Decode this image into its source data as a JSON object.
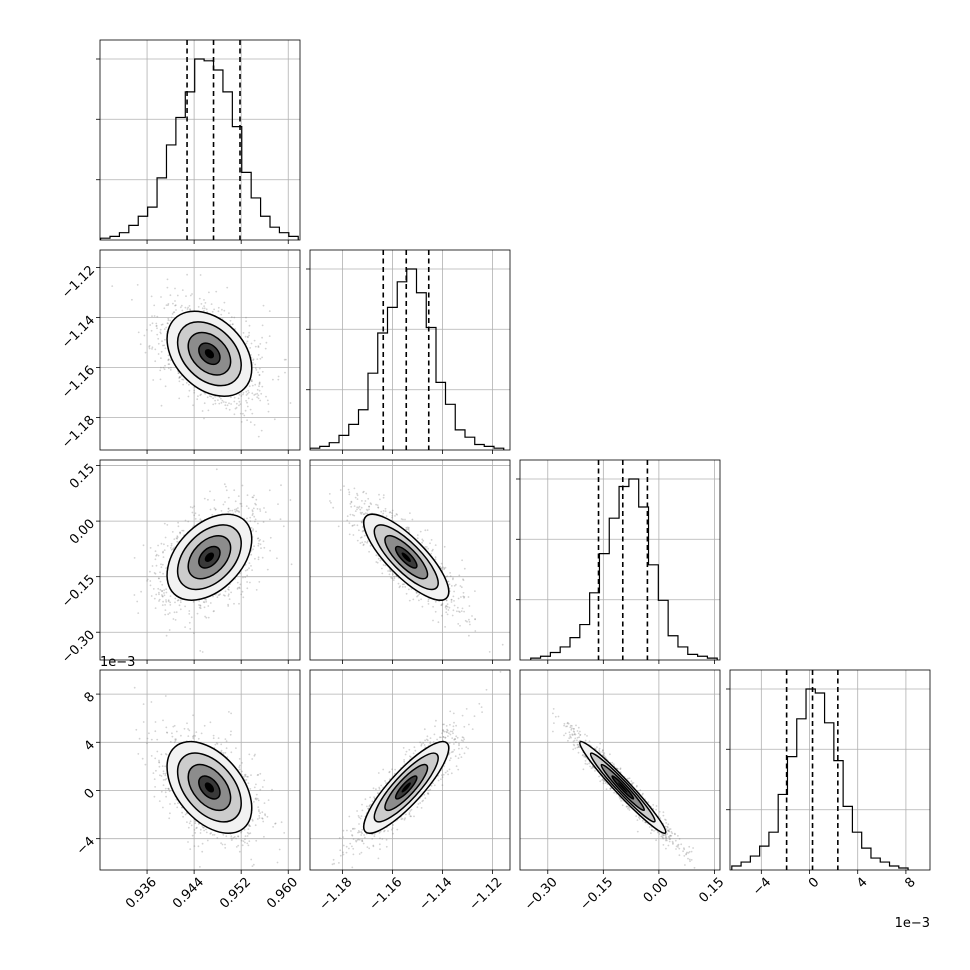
{
  "chart_data": {
    "type": "corner",
    "parameters": [
      {
        "range": [
          0.928,
          0.962
        ],
        "ticks": [
          0.936,
          0.944,
          0.952,
          0.96
        ],
        "tick_labels": [
          "0.936",
          "0.944",
          "0.952",
          "0.960"
        ],
        "offset_label": "",
        "mean": 0.9466,
        "sd": 0.0036,
        "quantiles": [
          0.9428,
          0.9473,
          0.9518
        ],
        "hist_edges": [
          0.9281,
          0.9297,
          0.9313,
          0.9329,
          0.9345,
          0.9361,
          0.9377,
          0.9393,
          0.9409,
          0.9425,
          0.9441,
          0.9457,
          0.9473,
          0.9489,
          0.9505,
          0.9521,
          0.9537,
          0.9553,
          0.9569,
          0.9585,
          0.9601,
          0.9617
        ],
        "hist_counts": [
          0.01,
          0.02,
          0.04,
          0.08,
          0.13,
          0.18,
          0.34,
          0.52,
          0.67,
          0.81,
          0.99,
          0.98,
          0.93,
          0.81,
          0.62,
          0.37,
          0.23,
          0.13,
          0.07,
          0.04,
          0.02
        ]
      },
      {
        "range": [
          -1.193,
          -1.113
        ],
        "ticks": [
          -1.18,
          -1.16,
          -1.14,
          -1.12
        ],
        "tick_labels": [
          "−1.18",
          "−1.16",
          "−1.14",
          "−1.12"
        ],
        "offset_label": "",
        "mean": -1.1545,
        "sd": 0.0085,
        "quantiles": [
          -1.1637,
          -1.1545,
          -1.1455
        ],
        "hist_edges": [
          -1.193,
          -1.1891,
          -1.1853,
          -1.1814,
          -1.1775,
          -1.1736,
          -1.1698,
          -1.1659,
          -1.162,
          -1.1581,
          -1.1543,
          -1.1504,
          -1.1465,
          -1.1426,
          -1.1388,
          -1.1349,
          -1.131,
          -1.1271,
          -1.1233,
          -1.1194,
          -1.1155
        ],
        "hist_counts": [
          0.01,
          0.02,
          0.04,
          0.08,
          0.14,
          0.22,
          0.42,
          0.64,
          0.78,
          0.92,
          0.99,
          0.86,
          0.67,
          0.37,
          0.25,
          0.11,
          0.07,
          0.03,
          0.02,
          0.01
        ]
      },
      {
        "range": [
          -0.375,
          0.165
        ],
        "ticks": [
          -0.3,
          -0.15,
          0.0,
          0.15
        ],
        "tick_labels": [
          "−0.30",
          "−0.15",
          "0.00",
          "0.15"
        ],
        "offset_label": "",
        "mean": -0.0975,
        "sd": 0.058,
        "quantiles": [
          -0.163,
          -0.0975,
          -0.031
        ],
        "hist_edges": [
          -0.346,
          -0.3195,
          -0.293,
          -0.2665,
          -0.24,
          -0.2135,
          -0.187,
          -0.1605,
          -0.134,
          -0.1075,
          -0.081,
          -0.0545,
          -0.028,
          -0.0015,
          0.025,
          0.0515,
          0.078,
          0.1045,
          0.131,
          0.1575
        ],
        "hist_counts": [
          0.01,
          0.02,
          0.04,
          0.07,
          0.12,
          0.19,
          0.36,
          0.57,
          0.76,
          0.93,
          0.97,
          0.82,
          0.51,
          0.32,
          0.13,
          0.07,
          0.03,
          0.02,
          0.01
        ]
      },
      {
        "range": [
          -6.6,
          10.0
        ],
        "ticks": [
          -4,
          0,
          4,
          8
        ],
        "tick_labels": [
          "−4",
          "0",
          "4",
          "8"
        ],
        "offset_label": "1e−3",
        "mean": 0.25,
        "sd": 1.9,
        "quantiles": [
          -1.9,
          0.25,
          2.35
        ],
        "hist_edges": [
          -6.45,
          -5.68,
          -4.91,
          -4.14,
          -3.37,
          -2.6,
          -1.83,
          -1.06,
          -0.29,
          0.48,
          1.25,
          2.02,
          2.79,
          3.56,
          4.33,
          5.1,
          5.87,
          6.64,
          7.41,
          8.18
        ],
        "hist_counts": [
          0.02,
          0.04,
          0.07,
          0.12,
          0.19,
          0.38,
          0.57,
          0.76,
          0.91,
          0.89,
          0.74,
          0.55,
          0.32,
          0.19,
          0.11,
          0.06,
          0.04,
          0.02,
          0.01
        ]
      }
    ],
    "correlations": {
      "1_0": -0.35,
      "2_0": 0.42,
      "2_1": -0.8,
      "3_0": -0.45,
      "3_1": 0.86,
      "3_2": -0.97
    },
    "contour_levels_sigma": [
      0.5,
      1.0,
      1.5,
      2.0
    ],
    "grid": true,
    "dashed_quantile_lines": true,
    "scatter_points": true,
    "colors": {
      "ink": "#000000",
      "grid": "#b0b0b0",
      "points": "#808080"
    }
  }
}
